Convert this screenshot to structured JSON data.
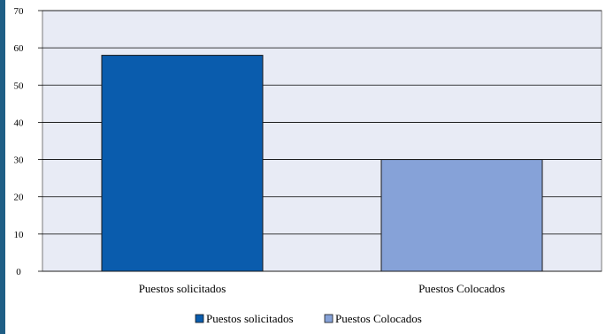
{
  "chart_data": {
    "type": "bar",
    "categories": [
      "Puestos solicitados",
      "Puestos Colocados"
    ],
    "values": [
      58,
      30
    ],
    "ylim": [
      0,
      70
    ],
    "yticks": [
      0,
      10,
      20,
      30,
      40,
      50,
      60,
      70
    ],
    "ytick_labels": [
      "0",
      "10",
      "20",
      "30",
      "40",
      "50",
      "60",
      "70"
    ],
    "grid": true,
    "legend": {
      "placement": "bottom",
      "entries": [
        "Puestos solicitados",
        "Puestos Colocados"
      ]
    },
    "colors": {
      "bars": [
        "#0a5cad",
        "#86a2d8"
      ],
      "plot_background": "#e8ebf5",
      "gridline": "#000000",
      "bar_stroke": "#1a1a1a"
    }
  }
}
